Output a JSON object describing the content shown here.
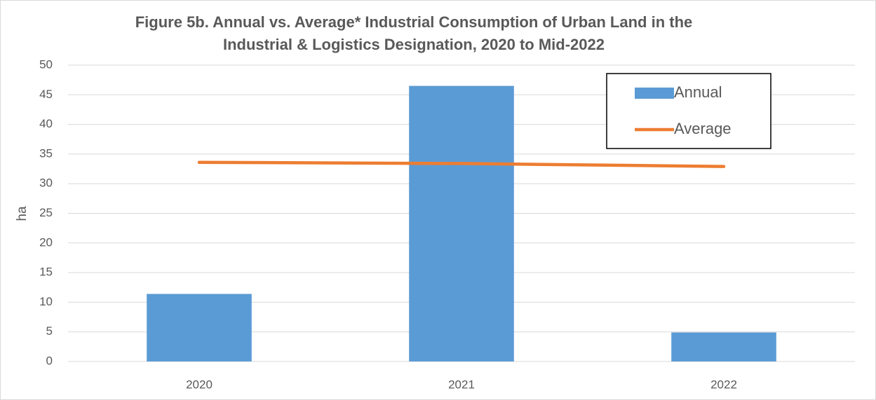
{
  "chart_data": {
    "type": "bar",
    "title": [
      "Figure 5b. Annual vs. Average* Industrial Consumption of Urban Land in the",
      "Industrial & Logistics Designation, 2020 to Mid-2022"
    ],
    "y_label": "ha",
    "categories": [
      "2020",
      "2021",
      "2022"
    ],
    "series": [
      {
        "name": "Annual",
        "type": "bar",
        "color": "#5b9bd5",
        "values": [
          11.4,
          46.5,
          4.9
        ]
      },
      {
        "name": "Average",
        "type": "line",
        "color": "#ed7d31",
        "values": [
          33.6,
          33.4,
          32.9
        ]
      }
    ],
    "ylim": [
      0,
      50
    ],
    "yticks": [
      0,
      5,
      10,
      15,
      20,
      25,
      30,
      35,
      40,
      45,
      50
    ],
    "grid": true,
    "legend": "top-right"
  }
}
